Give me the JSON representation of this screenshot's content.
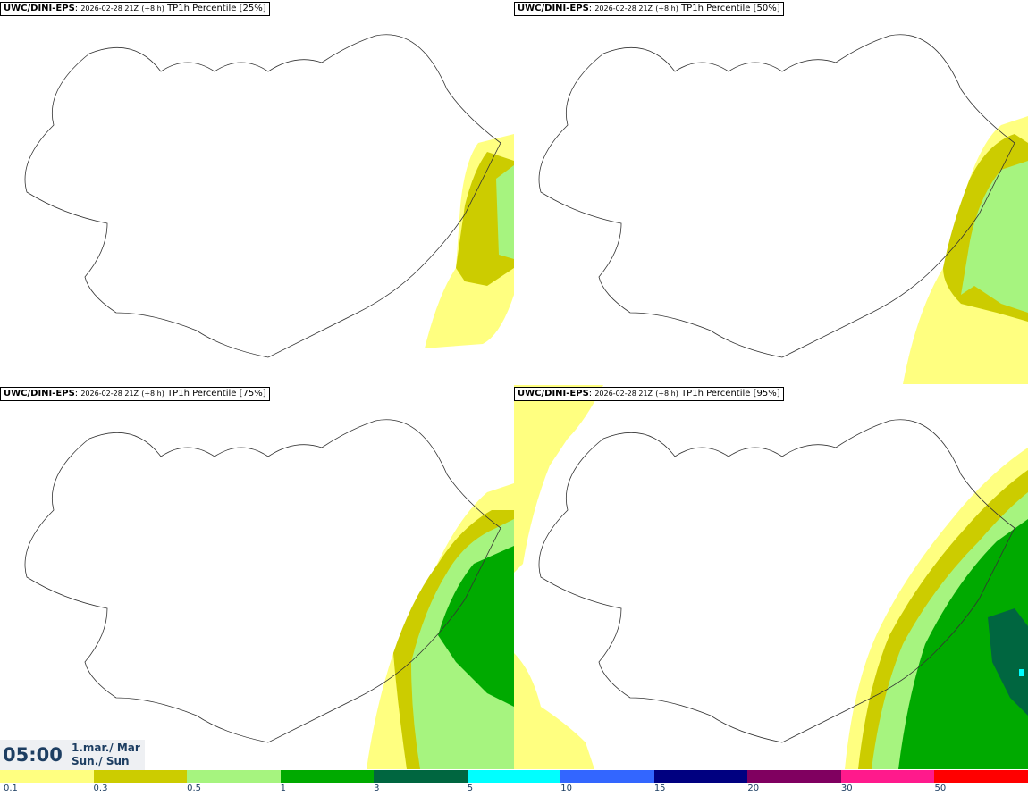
{
  "panels": [
    {
      "model": "UWC/DINI-EPS",
      "run": "2026-02-28 21Z",
      "lead": "(+8 h)",
      "param": "TP1h Percentile [25%]"
    },
    {
      "model": "UWC/DINI-EPS",
      "run": "2026-02-28 21Z",
      "lead": "(+8 h)",
      "param": "TP1h Percentile [50%]"
    },
    {
      "model": "UWC/DINI-EPS",
      "run": "2026-02-28 21Z",
      "lead": "(+8 h)",
      "param": "TP1h Percentile [75%]"
    },
    {
      "model": "UWC/DINI-EPS",
      "run": "2026-02-28 21Z",
      "lead": "(+8 h)",
      "param": "TP1h Percentile [95%]"
    }
  ],
  "valid": {
    "time": "05:00",
    "date_line1": "1.mar./ Mar",
    "date_line2": "Sun./ Sun"
  },
  "legend": {
    "colors": [
      "#ffff80",
      "#cccc00",
      "#a6f47f",
      "#00aa00",
      "#006640",
      "#00ffff",
      "#3366ff",
      "#000080",
      "#800060",
      "#ff1a8c",
      "#ff0000"
    ],
    "labels": [
      "0.1",
      "0.3",
      "0.5",
      "1",
      "3",
      "5",
      "10",
      "15",
      "20",
      "30",
      "50"
    ]
  }
}
